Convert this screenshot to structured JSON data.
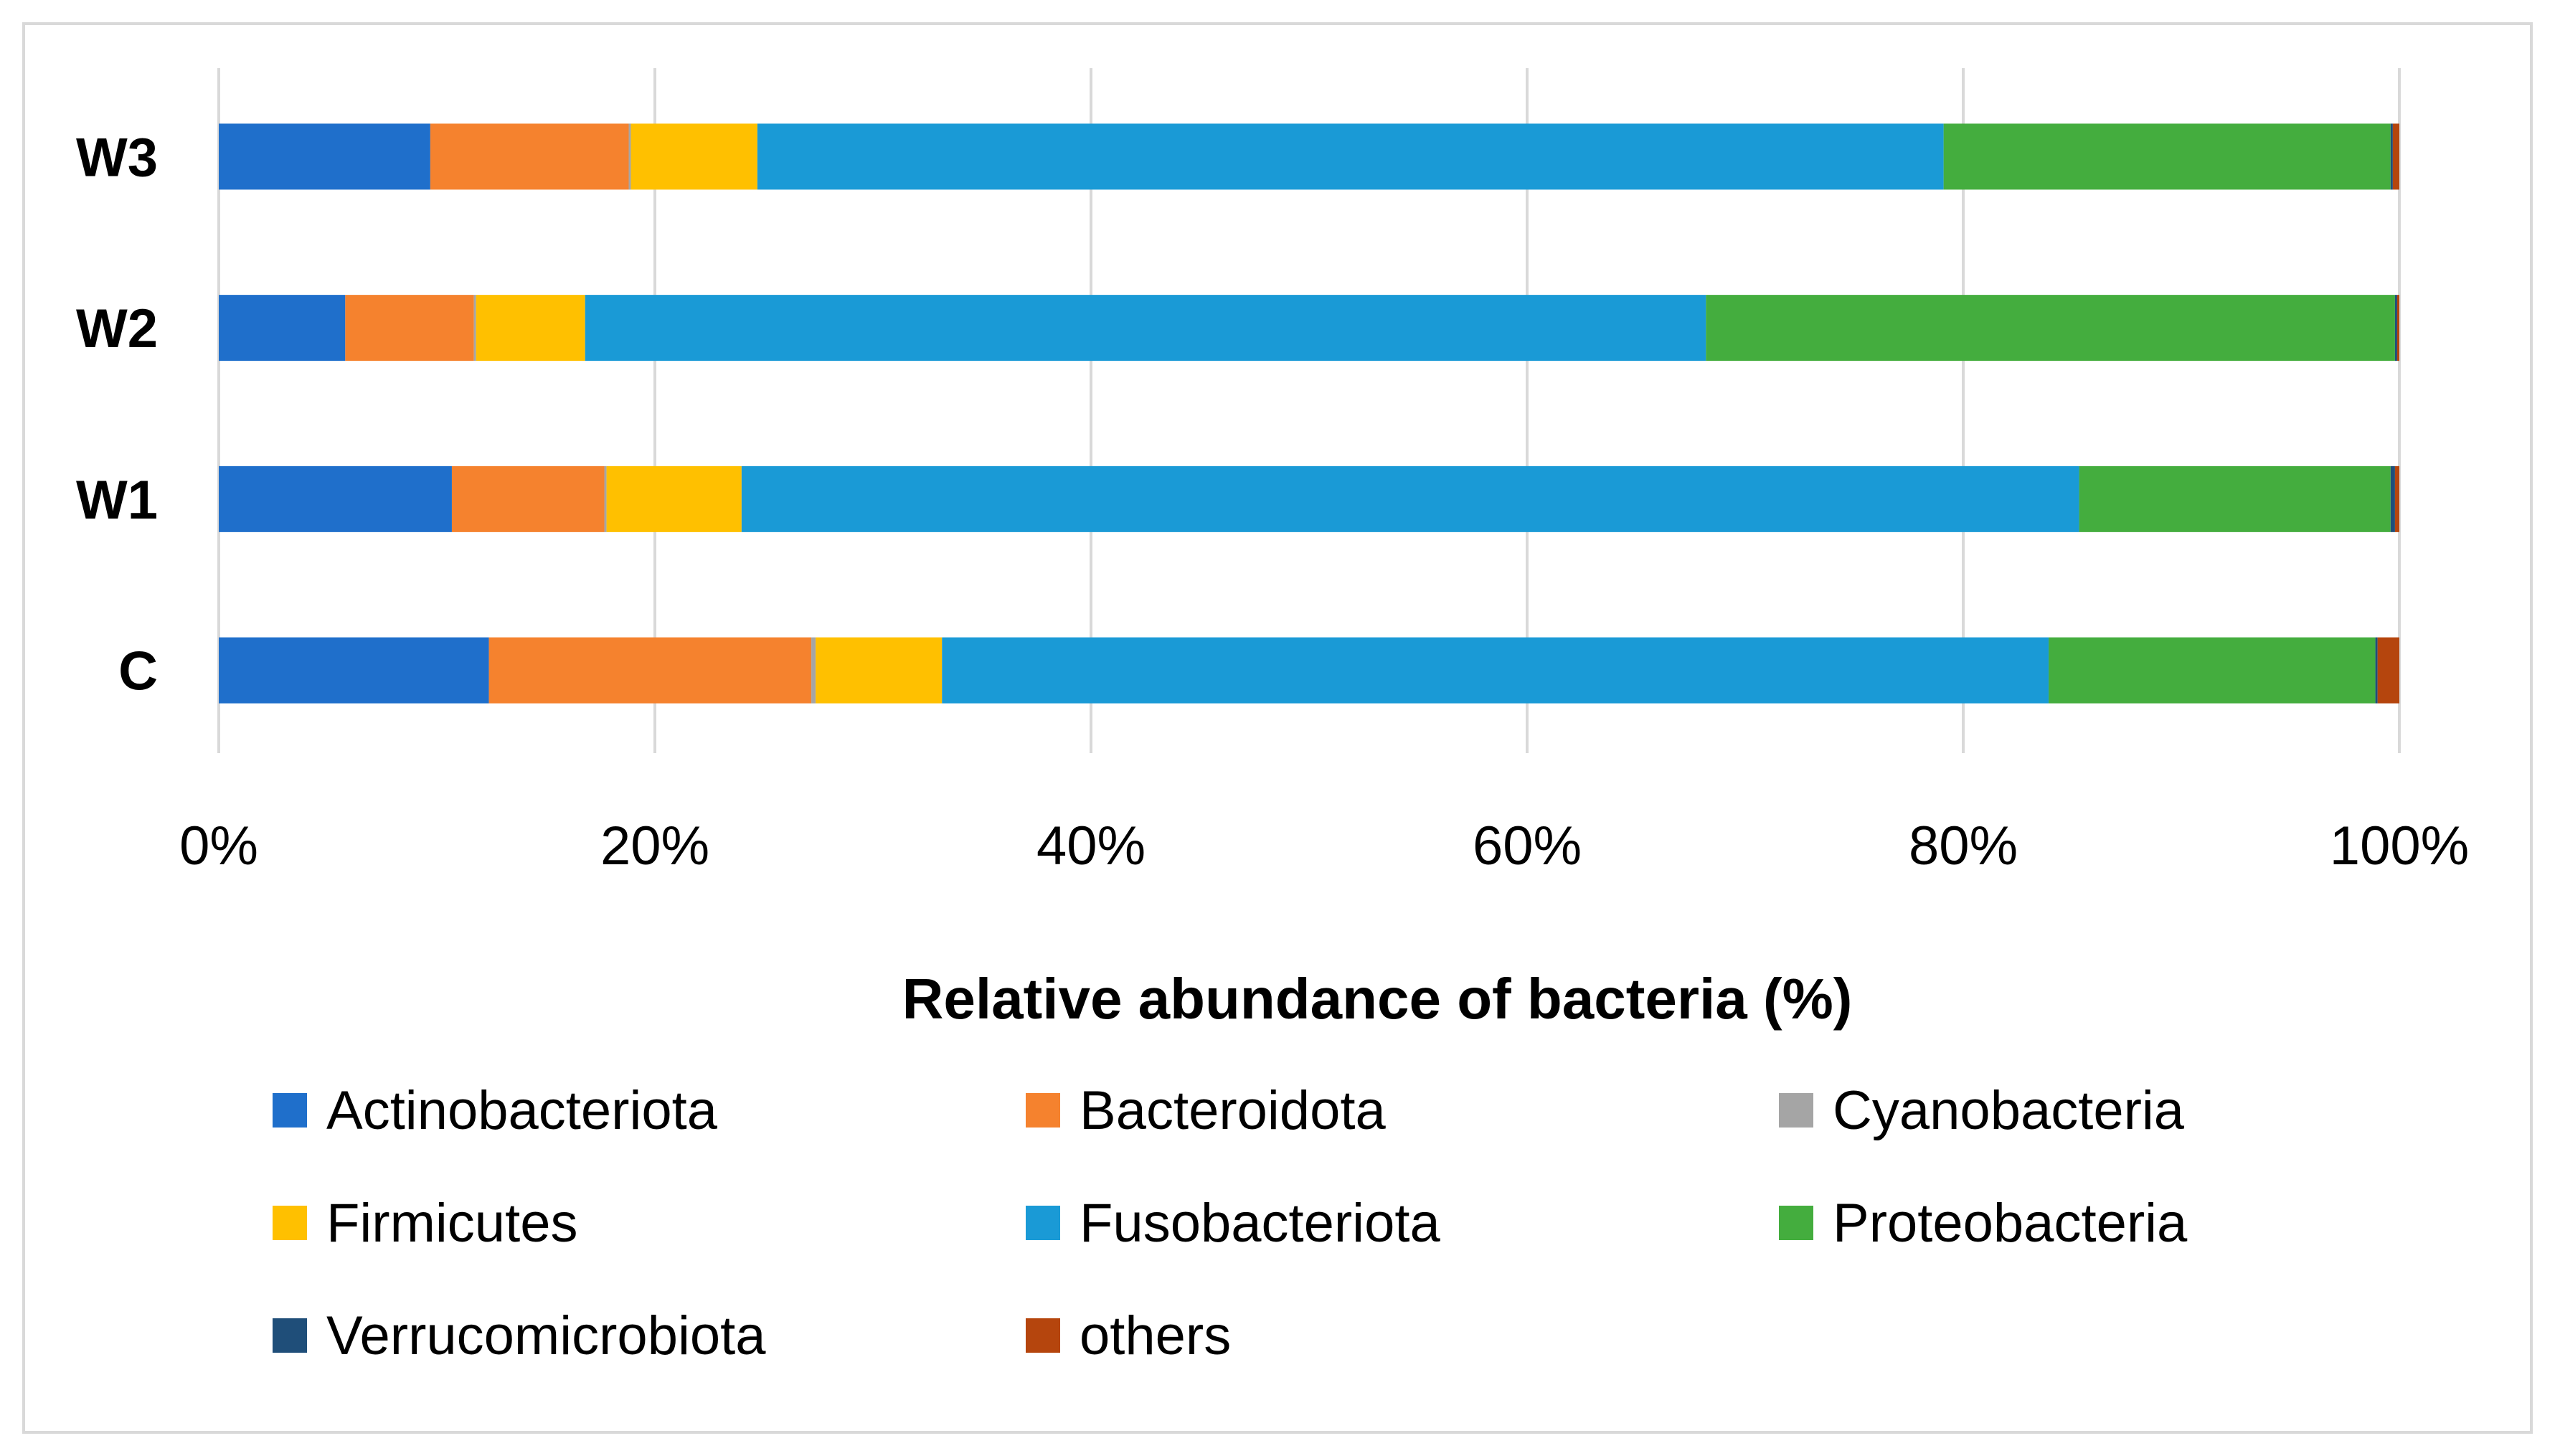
{
  "chart_data": {
    "type": "bar",
    "orientation": "horizontal",
    "stacked": "percent",
    "categories": [
      "C",
      "W1",
      "W2",
      "W3"
    ],
    "xlabel": "Relative abundance  of bacteria (%)",
    "ylabel": "",
    "xlim": [
      0,
      100
    ],
    "xticks": [
      "0%",
      "20%",
      "40%",
      "60%",
      "80%",
      "100%"
    ],
    "grid": "vertical",
    "legend_position": "bottom",
    "series": [
      {
        "name": "Actinobacteriota",
        "color": "#1F6FCB",
        "values": [
          12.4,
          10.7,
          5.8,
          9.7
        ]
      },
      {
        "name": "Bacteroidota",
        "color": "#F5822E",
        "values": [
          14.8,
          7.0,
          5.9,
          9.1
        ]
      },
      {
        "name": "Cyanobacteria",
        "color": "#A5A5A5",
        "values": [
          0.2,
          0.1,
          0.1,
          0.1
        ]
      },
      {
        "name": "Firmicutes",
        "color": "#FFC000",
        "values": [
          5.8,
          6.2,
          5.0,
          5.8
        ]
      },
      {
        "name": "Fusobacteriota",
        "color": "#1A9AD6",
        "values": [
          50.8,
          61.4,
          51.4,
          54.4
        ]
      },
      {
        "name": "Proteobacteria",
        "color": "#44AD3E",
        "values": [
          15.0,
          14.3,
          31.6,
          20.5
        ]
      },
      {
        "name": "Verrucomicrobiota",
        "color": "#1F4E79",
        "values": [
          0.1,
          0.2,
          0.1,
          0.1
        ]
      },
      {
        "name": "others",
        "color": "#B5450D",
        "values": [
          1.0,
          0.2,
          0.1,
          0.3
        ]
      }
    ]
  }
}
